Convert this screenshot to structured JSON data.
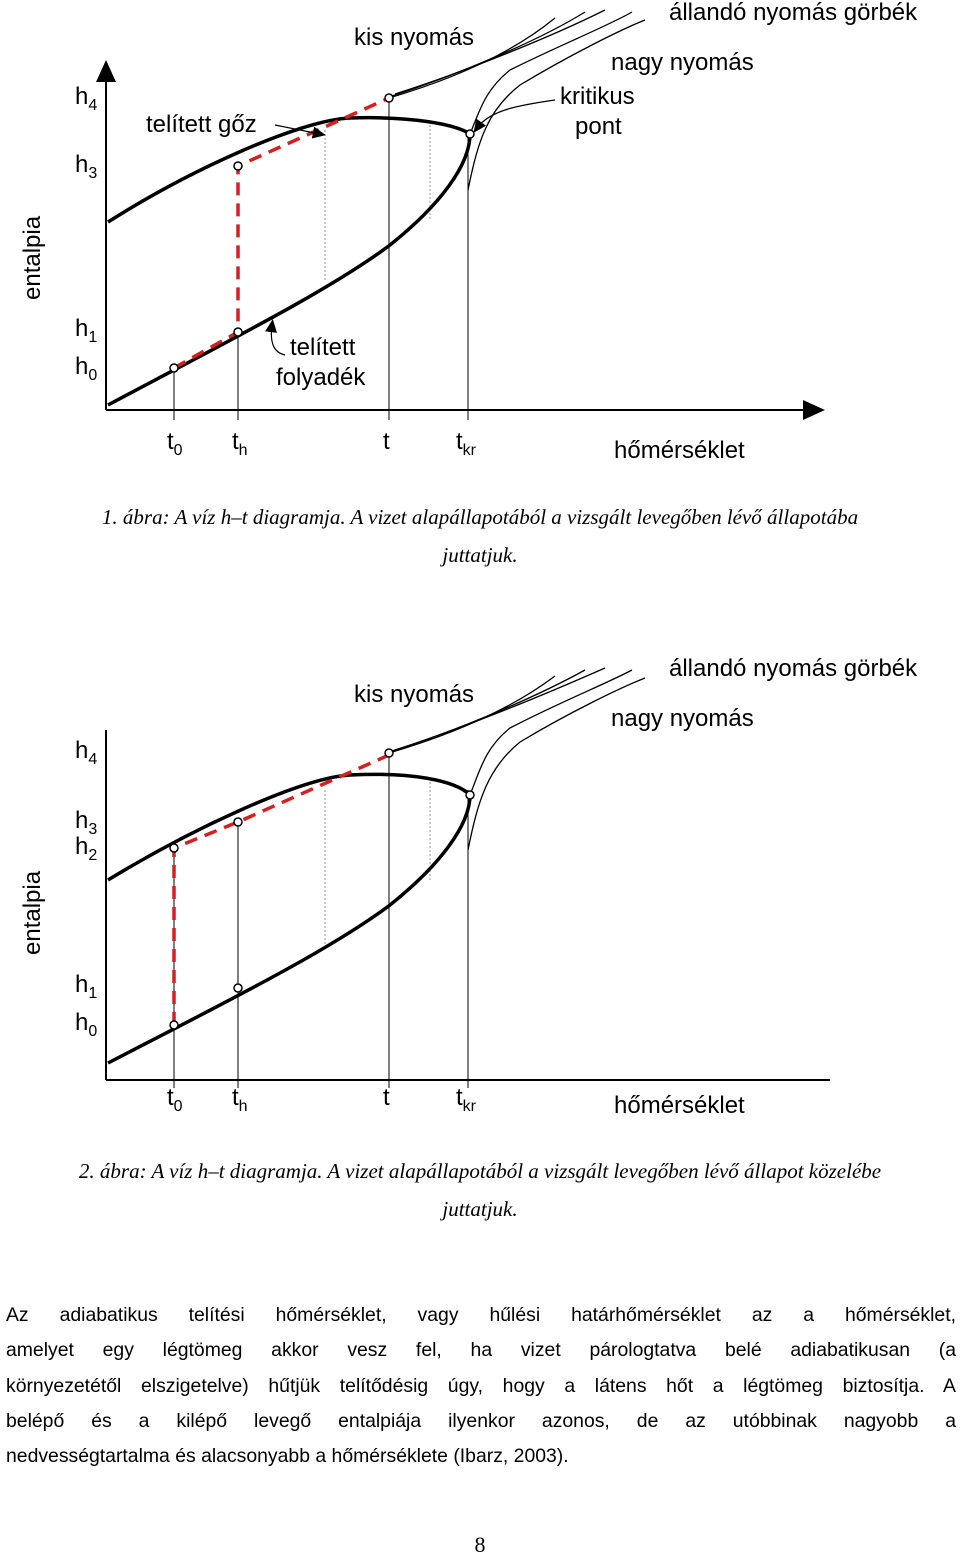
{
  "figure1": {
    "y_axis_label": "entalpia",
    "x_axis_label": "hőmérséklet",
    "y_ticks": [
      {
        "base": "h",
        "sub": "4"
      },
      {
        "base": "h",
        "sub": "3"
      },
      {
        "base": "h",
        "sub": "1"
      },
      {
        "base": "h",
        "sub": "0"
      }
    ],
    "x_ticks": [
      {
        "base": "t",
        "sub": "0"
      },
      {
        "base": "t",
        "sub": "h"
      },
      {
        "base": "t",
        "sub": ""
      },
      {
        "base": "t",
        "sub": "kr"
      }
    ],
    "labels": {
      "constant_pressure": "állandó nyomás görbék",
      "low_pressure": "kis nyomás",
      "high_pressure": "nagy nyomás",
      "critical_point_line1": "kritikus",
      "critical_point_line2": "pont",
      "saturated_vapor": "telített gőz",
      "saturated_liquid_line1": "telített",
      "saturated_liquid_line2": "folyadék"
    },
    "caption_line1": "1. ábra: A víz h–t diagramja. A vizet alapállapotából a vizsgált levegőben lévő állapotába",
    "caption_line2": "juttatjuk."
  },
  "figure2": {
    "y_axis_label": "entalpia",
    "x_axis_label": "hőmérséklet",
    "y_ticks": [
      {
        "base": "h",
        "sub": "4"
      },
      {
        "base": "h",
        "sub": "3"
      },
      {
        "base": "h",
        "sub": "2"
      },
      {
        "base": "h",
        "sub": "1"
      },
      {
        "base": "h",
        "sub": "0"
      }
    ],
    "x_ticks": [
      {
        "base": "t",
        "sub": "0"
      },
      {
        "base": "t",
        "sub": "h"
      },
      {
        "base": "t",
        "sub": ""
      },
      {
        "base": "t",
        "sub": "kr"
      }
    ],
    "labels": {
      "constant_pressure": "állandó nyomás görbék",
      "low_pressure": "kis nyomás",
      "high_pressure": "nagy nyomás"
    },
    "caption_line1": "2. ábra: A víz h–t diagramja. A vizet alapállapotából a vizsgált levegőben lévő állapot közelébe",
    "caption_line2": "juttatjuk."
  },
  "paragraph": {
    "lines": [
      "Az adiabatikus telítési hőmérséklet, vagy hűlési határhőmérséklet az a hőmérséklet,",
      "amelyet egy légtömeg akkor vesz fel, ha vizet párologtatva belé adiabatikusan (a",
      "környezetétől elszigetelve) hűtjük telítődésig úgy, hogy a látens hőt a légtömeg biztosítja. A",
      "belépő és a kilépő levegő entalpiája ilyenkor azonos, de az utóbbinak nagyobb a",
      "nedvességtartalma és alacsonyabb a hőmérséklete (Ibarz, 2003)."
    ]
  },
  "page_number": "8",
  "colors": {
    "ink": "#000000",
    "process_path": "#d42020",
    "guide_line": "#888888"
  }
}
